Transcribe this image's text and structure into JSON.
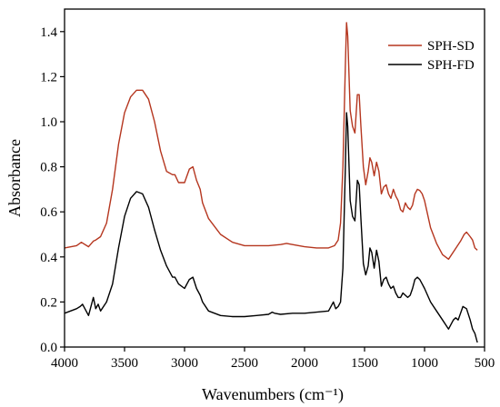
{
  "chart_data": {
    "type": "line",
    "xlabel": "Wavenumbers (cm⁻¹)",
    "ylabel": "Absorbance",
    "xlim": [
      4000,
      500
    ],
    "ylim": [
      0.0,
      1.5
    ],
    "x_reversed": true,
    "x_ticks": [
      "4000",
      "3500",
      "3000",
      "2500",
      "2000",
      "1500",
      "1000",
      "500"
    ],
    "y_ticks": [
      "0.0",
      "0.2",
      "0.4",
      "0.6",
      "0.8",
      "1.0",
      "1.2",
      "1.4"
    ],
    "legend_position": "top-right",
    "grid": false,
    "series": [
      {
        "name": "SPH-SD",
        "color": "#b5361f",
        "x": [
          4000,
          3900,
          3860,
          3800,
          3760,
          3740,
          3700,
          3650,
          3600,
          3550,
          3500,
          3450,
          3400,
          3350,
          3300,
          3250,
          3200,
          3150,
          3100,
          3080,
          3050,
          3000,
          2960,
          2930,
          2900,
          2870,
          2850,
          2800,
          2700,
          2600,
          2500,
          2400,
          2300,
          2200,
          2150,
          2100,
          2000,
          1900,
          1800,
          1750,
          1720,
          1700,
          1680,
          1660,
          1650,
          1640,
          1620,
          1600,
          1580,
          1560,
          1545,
          1530,
          1510,
          1490,
          1470,
          1455,
          1440,
          1420,
          1400,
          1380,
          1360,
          1340,
          1320,
          1300,
          1280,
          1260,
          1240,
          1220,
          1200,
          1180,
          1160,
          1140,
          1120,
          1100,
          1080,
          1060,
          1040,
          1020,
          1000,
          950,
          900,
          850,
          800,
          750,
          700,
          670,
          650,
          620,
          600,
          580,
          560
        ],
        "y": [
          0.44,
          0.45,
          0.465,
          0.445,
          0.47,
          0.475,
          0.49,
          0.55,
          0.7,
          0.9,
          1.04,
          1.11,
          1.14,
          1.14,
          1.1,
          1.0,
          0.87,
          0.78,
          0.765,
          0.765,
          0.73,
          0.73,
          0.79,
          0.8,
          0.74,
          0.7,
          0.64,
          0.57,
          0.5,
          0.465,
          0.45,
          0.45,
          0.45,
          0.455,
          0.46,
          0.455,
          0.445,
          0.44,
          0.44,
          0.45,
          0.475,
          0.55,
          0.8,
          1.25,
          1.44,
          1.38,
          1.05,
          0.98,
          0.95,
          1.12,
          1.12,
          0.98,
          0.8,
          0.72,
          0.78,
          0.84,
          0.82,
          0.76,
          0.82,
          0.78,
          0.68,
          0.71,
          0.72,
          0.68,
          0.66,
          0.7,
          0.67,
          0.65,
          0.61,
          0.6,
          0.64,
          0.62,
          0.61,
          0.63,
          0.68,
          0.7,
          0.695,
          0.68,
          0.65,
          0.53,
          0.46,
          0.41,
          0.39,
          0.43,
          0.47,
          0.5,
          0.51,
          0.49,
          0.475,
          0.44,
          0.43
        ]
      },
      {
        "name": "SPH-FD",
        "color": "#000000",
        "x": [
          4000,
          3950,
          3900,
          3870,
          3850,
          3800,
          3760,
          3740,
          3720,
          3700,
          3650,
          3600,
          3550,
          3500,
          3450,
          3400,
          3350,
          3300,
          3250,
          3200,
          3150,
          3100,
          3080,
          3050,
          3000,
          2960,
          2930,
          2900,
          2870,
          2850,
          2800,
          2700,
          2600,
          2500,
          2400,
          2300,
          2270,
          2250,
          2200,
          2100,
          2000,
          1900,
          1800,
          1760,
          1740,
          1720,
          1700,
          1680,
          1660,
          1650,
          1640,
          1620,
          1600,
          1580,
          1560,
          1545,
          1530,
          1510,
          1490,
          1470,
          1455,
          1440,
          1420,
          1400,
          1380,
          1360,
          1340,
          1320,
          1300,
          1280,
          1260,
          1240,
          1220,
          1200,
          1180,
          1160,
          1140,
          1120,
          1100,
          1080,
          1060,
          1040,
          1020,
          1000,
          950,
          900,
          850,
          800,
          760,
          740,
          720,
          700,
          680,
          650,
          620,
          600,
          580,
          560
        ],
        "y": [
          0.15,
          0.16,
          0.17,
          0.18,
          0.19,
          0.14,
          0.22,
          0.17,
          0.19,
          0.16,
          0.2,
          0.28,
          0.44,
          0.58,
          0.66,
          0.69,
          0.68,
          0.62,
          0.52,
          0.43,
          0.36,
          0.31,
          0.31,
          0.28,
          0.26,
          0.3,
          0.31,
          0.26,
          0.23,
          0.2,
          0.16,
          0.14,
          0.135,
          0.135,
          0.14,
          0.145,
          0.155,
          0.15,
          0.145,
          0.15,
          0.15,
          0.155,
          0.16,
          0.2,
          0.17,
          0.18,
          0.2,
          0.35,
          0.8,
          1.04,
          0.98,
          0.65,
          0.58,
          0.56,
          0.74,
          0.72,
          0.57,
          0.37,
          0.32,
          0.36,
          0.44,
          0.42,
          0.35,
          0.43,
          0.38,
          0.27,
          0.3,
          0.31,
          0.28,
          0.26,
          0.27,
          0.24,
          0.22,
          0.22,
          0.24,
          0.23,
          0.22,
          0.23,
          0.26,
          0.3,
          0.31,
          0.3,
          0.28,
          0.26,
          0.2,
          0.16,
          0.12,
          0.08,
          0.12,
          0.13,
          0.12,
          0.15,
          0.18,
          0.17,
          0.12,
          0.08,
          0.06,
          0.02
        ]
      }
    ]
  }
}
